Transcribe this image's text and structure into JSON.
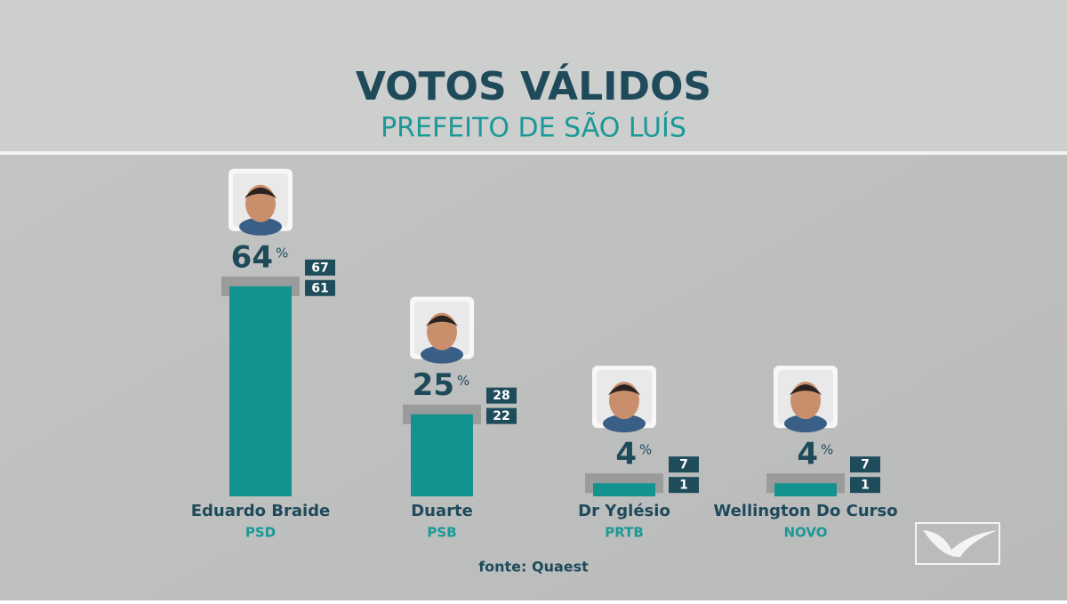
{
  "title": "VOTOS VÁLIDOS",
  "subtitle": "PREFEITO DE SÃO LUÍS",
  "chart_data": {
    "type": "bar",
    "categories": [
      "Eduardo Braide",
      "Duarte",
      "Dr Yglésio",
      "Wellington Do Curso"
    ],
    "parties": [
      "PSD",
      "PSB",
      "PRTB",
      "NOVO"
    ],
    "values": [
      64,
      25,
      4,
      4
    ],
    "unit": "%",
    "upper": [
      67,
      28,
      7,
      7
    ],
    "lower": [
      61,
      22,
      1,
      1
    ],
    "color": "#14928f",
    "range_color": "#9a9b9b",
    "box_color": "#1f4c5b"
  },
  "source": "fonte: Quaest"
}
